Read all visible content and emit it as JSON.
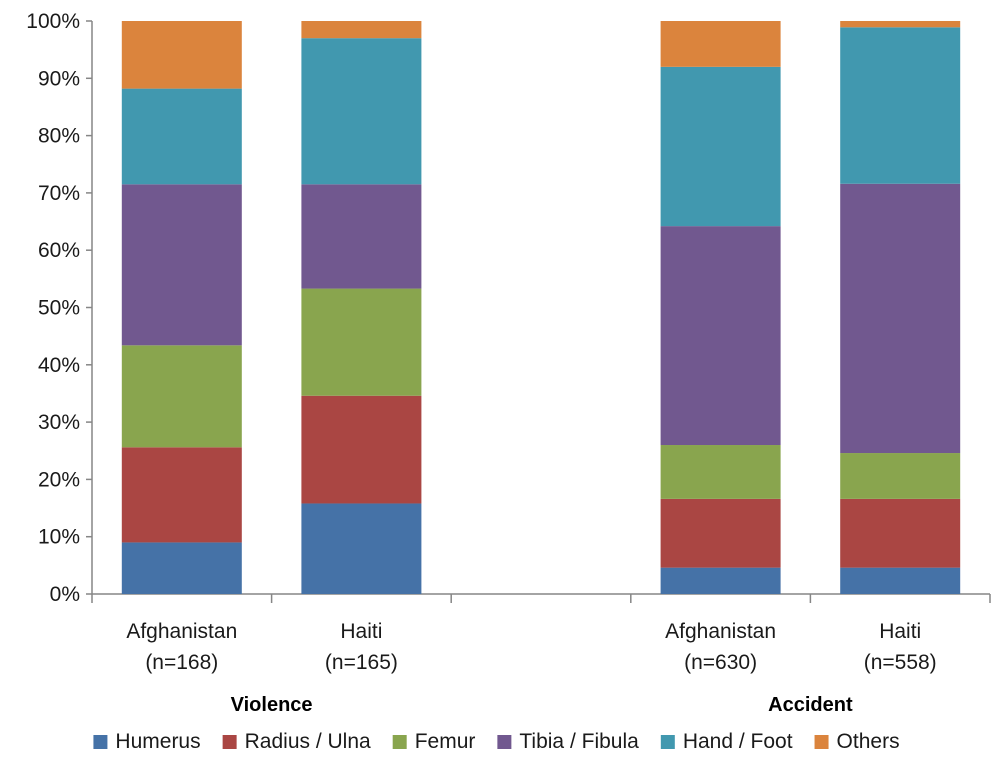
{
  "chart_data": {
    "type": "bar",
    "stacked": true,
    "percent": true,
    "ylim": [
      0,
      100
    ],
    "y_ticks": [
      "0%",
      "10%",
      "20%",
      "30%",
      "40%",
      "50%",
      "60%",
      "70%",
      "80%",
      "90%",
      "100%"
    ],
    "categories": [
      {
        "group": "Violence",
        "label_line1": "Afghanistan",
        "label_line2": "(n=168)"
      },
      {
        "group": "Violence",
        "label_line1": "Haiti",
        "label_line2": "(n=165)"
      },
      {
        "group": "Accident",
        "label_line1": "Afghanistan",
        "label_line2": "(n=630)"
      },
      {
        "group": "Accident",
        "label_line1": "Haiti",
        "label_line2": "(n=558)"
      }
    ],
    "groups": [
      "Violence",
      "Accident"
    ],
    "series": [
      {
        "name": "Humerus",
        "color": "#4572A7",
        "values": [
          9.0,
          15.8,
          4.6,
          4.6
        ]
      },
      {
        "name": "Radius / Ulna",
        "color": "#AA4643",
        "values": [
          16.6,
          18.8,
          12.0,
          12.0
        ]
      },
      {
        "name": "Femur",
        "color": "#89A54E",
        "values": [
          17.8,
          18.7,
          9.4,
          8.0
        ]
      },
      {
        "name": "Tibia / Fibula",
        "color": "#71588F",
        "values": [
          28.1,
          18.2,
          38.2,
          47.0
        ]
      },
      {
        "name": "Hand / Foot",
        "color": "#4198AF",
        "values": [
          16.7,
          25.5,
          27.8,
          27.3
        ]
      },
      {
        "name": "Others",
        "color": "#DB843D",
        "values": [
          11.8,
          3.0,
          8.0,
          1.1
        ]
      }
    ],
    "legend_position": "bottom",
    "grid": false
  }
}
